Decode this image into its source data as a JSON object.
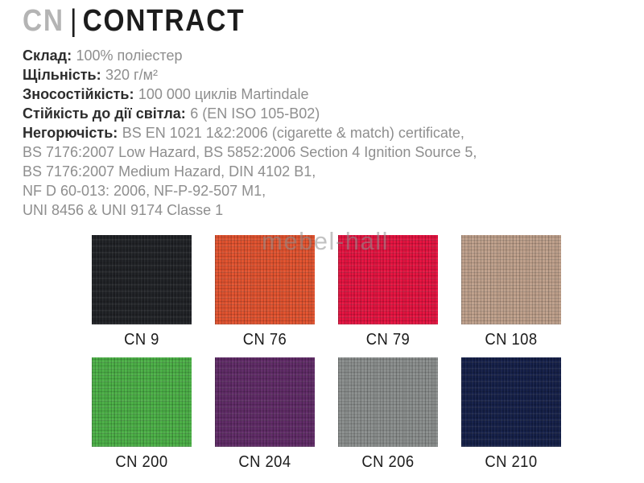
{
  "header": {
    "code": "CN",
    "separator": "|",
    "name": "CONTRACT"
  },
  "specs": [
    {
      "label": "Склад:",
      "value": "100% поліестер"
    },
    {
      "label": "Щільність:",
      "value": "320 г/м²"
    },
    {
      "label": "Зносостійкість:",
      "value": "100 000 циклів Martindale"
    },
    {
      "label": "Стійкість до дії світла:",
      "value": "6 (EN ISO 105-B02)"
    },
    {
      "label": "Негорючість:",
      "value": "BS EN 1021 1&2:2006 (cigarette & match) certificate,"
    },
    {
      "label": "",
      "value": "BS 7176:2007 Low Hazard, BS 5852:2006 Section 4 Ignition Source 5,"
    },
    {
      "label": "",
      "value": "BS 7176:2007 Medium Hazard, DIN 4102 B1,"
    },
    {
      "label": "",
      "value": "NF D 60-013: 2006, NF-P-92-507 M1,"
    },
    {
      "label": "",
      "value": "UNI 8456 & UNI 9174 Classe 1"
    }
  ],
  "watermark": "mebel-hall",
  "swatches": [
    {
      "code": "CN 9",
      "color": "#1f2125"
    },
    {
      "code": "CN 76",
      "color": "#e2522e"
    },
    {
      "code": "CN 79",
      "color": "#e5123f"
    },
    {
      "code": "CN 108",
      "color": "#bfa08b"
    },
    {
      "code": "CN 200",
      "color": "#4bb046"
    },
    {
      "code": "CN 204",
      "color": "#5f2a66"
    },
    {
      "code": "CN 206",
      "color": "#8a8e8d"
    },
    {
      "code": "CN 210",
      "color": "#141f48"
    }
  ],
  "theme": {
    "title_muted": "#b4b4b4",
    "title_dark": "#1c1c1c",
    "spec_label_color": "#2d2d2d",
    "spec_value_color": "#8e8e8e",
    "watermark_color": "#909090"
  }
}
